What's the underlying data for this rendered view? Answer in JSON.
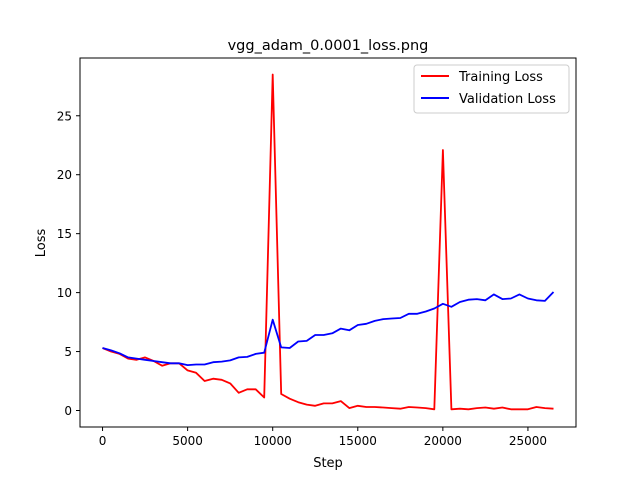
{
  "chart_data": {
    "type": "line",
    "title": "vgg_adam_0.0001_loss.png",
    "xlabel": "Step",
    "ylabel": "Loss",
    "xlim": [
      -1325,
      27825
    ],
    "ylim": [
      -1.4,
      29.9
    ],
    "xticks": [
      0,
      5000,
      10000,
      15000,
      20000,
      25000
    ],
    "xtick_labels": [
      "0",
      "5000",
      "10000",
      "15000",
      "20000",
      "25000"
    ],
    "yticks": [
      0,
      5,
      10,
      15,
      20,
      25
    ],
    "ytick_labels": [
      "0",
      "5",
      "10",
      "15",
      "20",
      "25"
    ],
    "grid": false,
    "legend_position": "top-right",
    "series": [
      {
        "name": "Training Loss",
        "color": "#ff0000",
        "points": [
          [
            0,
            5.3
          ],
          [
            500,
            5.0
          ],
          [
            1000,
            4.8
          ],
          [
            1500,
            4.4
          ],
          [
            2000,
            4.3
          ],
          [
            2500,
            4.5
          ],
          [
            3000,
            4.2
          ],
          [
            3500,
            3.8
          ],
          [
            4000,
            4.0
          ],
          [
            4500,
            4.0
          ],
          [
            5000,
            3.4
          ],
          [
            5500,
            3.2
          ],
          [
            6000,
            2.5
          ],
          [
            6500,
            2.7
          ],
          [
            7000,
            2.6
          ],
          [
            7500,
            2.3
          ],
          [
            8000,
            1.5
          ],
          [
            8500,
            1.8
          ],
          [
            9000,
            1.8
          ],
          [
            9500,
            1.1
          ],
          [
            10000,
            28.5
          ],
          [
            10500,
            1.4
          ],
          [
            11000,
            1.0
          ],
          [
            11500,
            0.7
          ],
          [
            12000,
            0.5
          ],
          [
            12500,
            0.4
          ],
          [
            13000,
            0.6
          ],
          [
            13500,
            0.6
          ],
          [
            14000,
            0.8
          ],
          [
            14500,
            0.2
          ],
          [
            15000,
            0.4
          ],
          [
            15500,
            0.3
          ],
          [
            16000,
            0.3
          ],
          [
            16500,
            0.25
          ],
          [
            17000,
            0.2
          ],
          [
            17500,
            0.15
          ],
          [
            18000,
            0.3
          ],
          [
            18500,
            0.25
          ],
          [
            19000,
            0.2
          ],
          [
            19500,
            0.1
          ],
          [
            20000,
            22.1
          ],
          [
            20500,
            0.1
          ],
          [
            21000,
            0.15
          ],
          [
            21500,
            0.1
          ],
          [
            22000,
            0.2
          ],
          [
            22500,
            0.25
          ],
          [
            23000,
            0.15
          ],
          [
            23500,
            0.25
          ],
          [
            24000,
            0.1
          ],
          [
            24500,
            0.1
          ],
          [
            25000,
            0.1
          ],
          [
            25500,
            0.3
          ],
          [
            26000,
            0.2
          ],
          [
            26500,
            0.15
          ]
        ]
      },
      {
        "name": "Validation Loss",
        "color": "#0000ff",
        "points": [
          [
            0,
            5.3
          ],
          [
            500,
            5.1
          ],
          [
            1000,
            4.85
          ],
          [
            1500,
            4.5
          ],
          [
            2000,
            4.4
          ],
          [
            2500,
            4.3
          ],
          [
            3000,
            4.2
          ],
          [
            3500,
            4.1
          ],
          [
            4000,
            4.0
          ],
          [
            4500,
            4.0
          ],
          [
            5000,
            3.85
          ],
          [
            5500,
            3.9
          ],
          [
            6000,
            3.9
          ],
          [
            6500,
            4.1
          ],
          [
            7000,
            4.15
          ],
          [
            7500,
            4.25
          ],
          [
            8000,
            4.5
          ],
          [
            8500,
            4.55
          ],
          [
            9000,
            4.8
          ],
          [
            9500,
            4.9
          ],
          [
            10000,
            7.7
          ],
          [
            10500,
            5.35
          ],
          [
            11000,
            5.3
          ],
          [
            11500,
            5.85
          ],
          [
            12000,
            5.9
          ],
          [
            12500,
            6.4
          ],
          [
            13000,
            6.4
          ],
          [
            13500,
            6.55
          ],
          [
            14000,
            6.95
          ],
          [
            14500,
            6.8
          ],
          [
            15000,
            7.25
          ],
          [
            15500,
            7.35
          ],
          [
            16000,
            7.6
          ],
          [
            16500,
            7.75
          ],
          [
            17000,
            7.8
          ],
          [
            17500,
            7.85
          ],
          [
            18000,
            8.2
          ],
          [
            18500,
            8.2
          ],
          [
            19000,
            8.4
          ],
          [
            19500,
            8.65
          ],
          [
            20000,
            9.05
          ],
          [
            20500,
            8.8
          ],
          [
            21000,
            9.2
          ],
          [
            21500,
            9.4
          ],
          [
            22000,
            9.45
          ],
          [
            22500,
            9.35
          ],
          [
            23000,
            9.85
          ],
          [
            23500,
            9.45
          ],
          [
            24000,
            9.5
          ],
          [
            24500,
            9.85
          ],
          [
            25000,
            9.5
          ],
          [
            25500,
            9.35
          ],
          [
            26000,
            9.3
          ],
          [
            26500,
            10.05
          ]
        ]
      }
    ]
  }
}
